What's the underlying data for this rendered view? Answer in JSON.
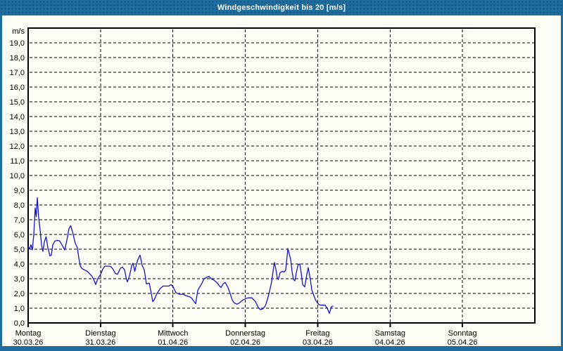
{
  "window": {
    "title": "Windgeschwindigkeit bis 20 [m/s]"
  },
  "colors": {
    "frame": "#1e6d9e",
    "background": "#fdfdf5",
    "line": "#1414cd",
    "axis": "#000000",
    "title_text": "#ffffff"
  },
  "chart_data": {
    "type": "line",
    "title": "Windgeschwindigkeit bis 20 [m/s]",
    "ylabel": "m/s",
    "ylim": [
      0,
      20
    ],
    "y_tick_step": 1,
    "grid": "dashed",
    "legend": "none",
    "y_tick_labels": [
      "0,0",
      "1,0",
      "2,0",
      "3,0",
      "4,0",
      "5,0",
      "6,0",
      "7,0",
      "8,0",
      "9,0",
      "10,0",
      "11,0",
      "12,0",
      "13,0",
      "14,0",
      "15,0",
      "16,0",
      "17,0",
      "18,0",
      "19,0"
    ],
    "x_axis": {
      "unit": "days",
      "range_days": 7,
      "days": [
        {
          "name": "Montag",
          "date": "30.03.26"
        },
        {
          "name": "Dienstag",
          "date": "31.03.26"
        },
        {
          "name": "Mittwoch",
          "date": "01.04.26"
        },
        {
          "name": "Donnerstag",
          "date": "02.04.26"
        },
        {
          "name": "Freitag",
          "date": "03.04.26"
        },
        {
          "name": "Samstag",
          "date": "04.04.26"
        },
        {
          "name": "Sonntag",
          "date": "05.04.26"
        }
      ]
    },
    "series": [
      {
        "name": "Windgeschwindigkeit",
        "x_unit": "days_since_monday",
        "y_unit": "m/s",
        "points": [
          [
            0.0,
            5.2
          ],
          [
            0.019,
            5.0
          ],
          [
            0.039,
            5.3
          ],
          [
            0.058,
            4.95
          ],
          [
            0.078,
            6.0
          ],
          [
            0.097,
            7.8
          ],
          [
            0.112,
            7.2
          ],
          [
            0.126,
            8.5
          ],
          [
            0.146,
            7.1
          ],
          [
            0.165,
            6.3
          ],
          [
            0.185,
            5.3
          ],
          [
            0.204,
            4.85
          ],
          [
            0.224,
            5.5
          ],
          [
            0.248,
            5.85
          ],
          [
            0.272,
            5.1
          ],
          [
            0.301,
            4.55
          ],
          [
            0.321,
            4.6
          ],
          [
            0.34,
            5.3
          ],
          [
            0.369,
            5.55
          ],
          [
            0.408,
            5.6
          ],
          [
            0.437,
            5.55
          ],
          [
            0.467,
            5.3
          ],
          [
            0.506,
            4.95
          ],
          [
            0.535,
            5.6
          ],
          [
            0.564,
            6.4
          ],
          [
            0.588,
            6.6
          ],
          [
            0.612,
            6.2
          ],
          [
            0.651,
            5.4
          ],
          [
            0.681,
            5.1
          ],
          [
            0.7,
            4.4
          ],
          [
            0.719,
            3.9
          ],
          [
            0.739,
            3.7
          ],
          [
            0.778,
            3.6
          ],
          [
            0.817,
            3.5
          ],
          [
            0.856,
            3.3
          ],
          [
            0.885,
            3.15
          ],
          [
            0.914,
            2.85
          ],
          [
            0.933,
            2.6
          ],
          [
            0.962,
            3.0
          ],
          [
            1.001,
            3.3
          ],
          [
            1.031,
            3.65
          ],
          [
            1.06,
            3.85
          ],
          [
            1.089,
            3.85
          ],
          [
            1.118,
            3.85
          ],
          [
            1.147,
            3.8
          ],
          [
            1.167,
            3.68
          ],
          [
            1.206,
            3.35
          ],
          [
            1.235,
            3.3
          ],
          [
            1.274,
            3.7
          ],
          [
            1.303,
            3.78
          ],
          [
            1.332,
            3.6
          ],
          [
            1.356,
            3.0
          ],
          [
            1.371,
            2.78
          ],
          [
            1.4,
            3.2
          ],
          [
            1.434,
            3.95
          ],
          [
            1.449,
            4.05
          ],
          [
            1.473,
            3.5
          ],
          [
            1.497,
            4.0
          ],
          [
            1.517,
            4.3
          ],
          [
            1.546,
            4.6
          ],
          [
            1.575,
            3.9
          ],
          [
            1.604,
            3.6
          ],
          [
            1.633,
            2.65
          ],
          [
            1.672,
            2.7
          ],
          [
            1.701,
            2.0
          ],
          [
            1.721,
            1.45
          ],
          [
            1.74,
            1.55
          ],
          [
            1.779,
            2.0
          ],
          [
            1.828,
            2.35
          ],
          [
            1.867,
            2.5
          ],
          [
            1.906,
            2.5
          ],
          [
            1.944,
            2.5
          ],
          [
            1.974,
            2.6
          ],
          [
            2.003,
            2.45
          ],
          [
            2.042,
            2.05
          ],
          [
            2.09,
            1.95
          ],
          [
            2.139,
            1.95
          ],
          [
            2.178,
            1.85
          ],
          [
            2.217,
            1.8
          ],
          [
            2.256,
            1.7
          ],
          [
            2.285,
            1.5
          ],
          [
            2.314,
            1.3
          ],
          [
            2.343,
            2.2
          ],
          [
            2.363,
            2.4
          ],
          [
            2.392,
            2.6
          ],
          [
            2.431,
            3.0
          ],
          [
            2.469,
            3.1
          ],
          [
            2.499,
            3.15
          ],
          [
            2.528,
            3.0
          ],
          [
            2.567,
            2.9
          ],
          [
            2.606,
            2.75
          ],
          [
            2.644,
            2.5
          ],
          [
            2.664,
            2.4
          ],
          [
            2.693,
            2.65
          ],
          [
            2.722,
            2.75
          ],
          [
            2.761,
            2.4
          ],
          [
            2.79,
            2.0
          ],
          [
            2.819,
            1.55
          ],
          [
            2.849,
            1.35
          ],
          [
            2.887,
            1.27
          ],
          [
            2.917,
            1.35
          ],
          [
            2.965,
            1.55
          ],
          [
            3.004,
            1.65
          ],
          [
            3.043,
            1.7
          ],
          [
            3.092,
            1.7
          ],
          [
            3.14,
            1.45
          ],
          [
            3.179,
            1.05
          ],
          [
            3.208,
            0.9
          ],
          [
            3.238,
            0.95
          ],
          [
            3.276,
            1.15
          ],
          [
            3.306,
            1.6
          ],
          [
            3.335,
            2.15
          ],
          [
            3.364,
            2.8
          ],
          [
            3.383,
            3.5
          ],
          [
            3.403,
            4.1
          ],
          [
            3.422,
            3.65
          ],
          [
            3.442,
            3.05
          ],
          [
            3.456,
            2.95
          ],
          [
            3.481,
            3.4
          ],
          [
            3.51,
            3.5
          ],
          [
            3.539,
            3.45
          ],
          [
            3.558,
            3.6
          ],
          [
            3.588,
            5.05
          ],
          [
            3.607,
            4.7
          ],
          [
            3.626,
            4.3
          ],
          [
            3.646,
            3.5
          ],
          [
            3.665,
            2.95
          ],
          [
            3.685,
            2.85
          ],
          [
            3.704,
            3.4
          ],
          [
            3.729,
            3.95
          ],
          [
            3.753,
            4.0
          ],
          [
            3.772,
            3.4
          ],
          [
            3.792,
            2.6
          ],
          [
            3.821,
            2.45
          ],
          [
            3.85,
            3.3
          ],
          [
            3.869,
            3.75
          ],
          [
            3.899,
            2.95
          ],
          [
            3.918,
            2.25
          ],
          [
            3.947,
            1.85
          ],
          [
            3.967,
            1.6
          ],
          [
            3.996,
            1.35
          ],
          [
            4.025,
            1.22
          ],
          [
            4.064,
            1.2
          ],
          [
            4.103,
            1.2
          ],
          [
            4.132,
            1.0
          ],
          [
            4.161,
            0.65
          ],
          [
            4.19,
            1.1
          ],
          [
            4.21,
            1.15
          ]
        ]
      }
    ]
  }
}
